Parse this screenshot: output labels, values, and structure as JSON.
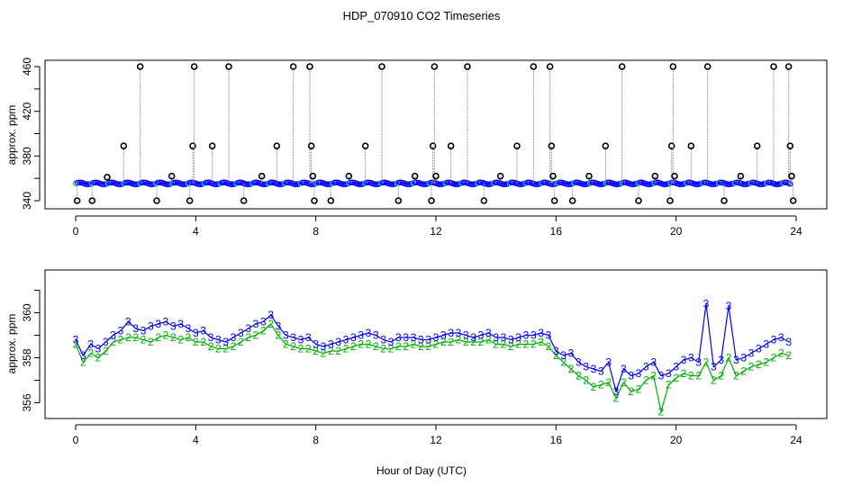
{
  "title": "HDP_070910  CO2 Timeseries",
  "xlabel": "Hour of Day (UTC)",
  "chart_data": [
    {
      "type": "scatter",
      "panel": "top",
      "ylabel": "approx. ppm",
      "xlim": [
        0,
        24
      ],
      "ylim": [
        340,
        460
      ],
      "x_ticks": [
        0,
        4,
        8,
        12,
        16,
        20,
        24
      ],
      "y_ticks": [
        340,
        380,
        420,
        460
      ],
      "y_ticks_minor": [
        360,
        400,
        440
      ],
      "colors": {
        "primary": "#0000ff",
        "secondary": "#00c8c8",
        "spikes": "#000000",
        "spike_line": "#9a9a9a"
      },
      "baseline_range": [
        354,
        357
      ],
      "spikes": [
        {
          "x": 0.05,
          "y": 340
        },
        {
          "x": 0.55,
          "y": 340
        },
        {
          "x": 1.05,
          "y": 361
        },
        {
          "x": 1.6,
          "y": 389
        },
        {
          "x": 2.15,
          "y": 460
        },
        {
          "x": 2.7,
          "y": 340
        },
        {
          "x": 3.2,
          "y": 362
        },
        {
          "x": 3.8,
          "y": 340
        },
        {
          "x": 3.9,
          "y": 389
        },
        {
          "x": 3.95,
          "y": 460
        },
        {
          "x": 4.55,
          "y": 389
        },
        {
          "x": 5.1,
          "y": 460
        },
        {
          "x": 5.6,
          "y": 340
        },
        {
          "x": 6.2,
          "y": 362
        },
        {
          "x": 6.7,
          "y": 389
        },
        {
          "x": 7.25,
          "y": 460
        },
        {
          "x": 7.8,
          "y": 460
        },
        {
          "x": 7.85,
          "y": 389
        },
        {
          "x": 7.9,
          "y": 362
        },
        {
          "x": 7.95,
          "y": 340
        },
        {
          "x": 8.5,
          "y": 340
        },
        {
          "x": 9.1,
          "y": 362
        },
        {
          "x": 9.65,
          "y": 389
        },
        {
          "x": 10.2,
          "y": 460
        },
        {
          "x": 10.75,
          "y": 340
        },
        {
          "x": 11.3,
          "y": 362
        },
        {
          "x": 11.85,
          "y": 340
        },
        {
          "x": 11.9,
          "y": 389
        },
        {
          "x": 11.95,
          "y": 460
        },
        {
          "x": 12.0,
          "y": 362
        },
        {
          "x": 12.5,
          "y": 389
        },
        {
          "x": 13.05,
          "y": 460
        },
        {
          "x": 13.6,
          "y": 340
        },
        {
          "x": 14.15,
          "y": 362
        },
        {
          "x": 14.7,
          "y": 389
        },
        {
          "x": 15.25,
          "y": 460
        },
        {
          "x": 15.8,
          "y": 460
        },
        {
          "x": 15.85,
          "y": 389
        },
        {
          "x": 15.9,
          "y": 362
        },
        {
          "x": 15.95,
          "y": 340
        },
        {
          "x": 16.55,
          "y": 340
        },
        {
          "x": 17.1,
          "y": 362
        },
        {
          "x": 17.65,
          "y": 389
        },
        {
          "x": 18.2,
          "y": 460
        },
        {
          "x": 18.75,
          "y": 340
        },
        {
          "x": 19.3,
          "y": 362
        },
        {
          "x": 19.8,
          "y": 340
        },
        {
          "x": 19.85,
          "y": 389
        },
        {
          "x": 19.9,
          "y": 460
        },
        {
          "x": 19.95,
          "y": 362
        },
        {
          "x": 20.5,
          "y": 389
        },
        {
          "x": 21.05,
          "y": 460
        },
        {
          "x": 21.6,
          "y": 340
        },
        {
          "x": 22.15,
          "y": 362
        },
        {
          "x": 22.7,
          "y": 389
        },
        {
          "x": 23.25,
          "y": 460
        },
        {
          "x": 23.75,
          "y": 460
        },
        {
          "x": 23.8,
          "y": 389
        },
        {
          "x": 23.85,
          "y": 362
        },
        {
          "x": 23.9,
          "y": 340
        }
      ]
    },
    {
      "type": "line",
      "panel": "bottom",
      "ylabel": "approx. ppm",
      "xlim": [
        0,
        24
      ],
      "ylim": [
        355.5,
        361.5
      ],
      "x_ticks": [
        0,
        4,
        8,
        12,
        16,
        20,
        24
      ],
      "y_ticks": [
        356,
        358,
        360
      ],
      "y_ticks_minor": [
        357,
        359,
        361
      ],
      "marker_series_3": "3",
      "marker_series_2": "2",
      "colors": {
        "series_3": "#0000ff",
        "series_2": "#00b000"
      },
      "x": [
        0.0,
        0.25,
        0.5,
        0.75,
        1.0,
        1.25,
        1.5,
        1.75,
        2.0,
        2.25,
        2.5,
        2.75,
        3.0,
        3.25,
        3.5,
        3.75,
        4.0,
        4.25,
        4.5,
        4.75,
        5.0,
        5.25,
        5.5,
        5.75,
        6.0,
        6.25,
        6.5,
        6.75,
        7.0,
        7.25,
        7.5,
        7.75,
        8.0,
        8.25,
        8.5,
        8.75,
        9.0,
        9.25,
        9.5,
        9.75,
        10.0,
        10.25,
        10.5,
        10.75,
        11.0,
        11.25,
        11.5,
        11.75,
        12.0,
        12.25,
        12.5,
        12.75,
        13.0,
        13.25,
        13.5,
        13.75,
        14.0,
        14.25,
        14.5,
        14.75,
        15.0,
        15.25,
        15.5,
        15.75,
        16.0,
        16.25,
        16.5,
        16.75,
        17.0,
        17.25,
        17.5,
        17.75,
        18.0,
        18.25,
        18.5,
        18.75,
        19.0,
        19.25,
        19.5,
        19.75,
        20.0,
        20.25,
        20.5,
        20.75,
        21.0,
        21.25,
        21.5,
        21.75,
        22.0,
        22.25,
        22.5,
        22.75,
        23.0,
        23.25,
        23.5,
        23.75
      ],
      "series_3": [
        358.8,
        358.1,
        358.6,
        358.4,
        358.7,
        359.0,
        359.2,
        359.6,
        359.3,
        359.2,
        359.4,
        359.5,
        359.6,
        359.4,
        359.5,
        359.3,
        359.1,
        359.2,
        358.9,
        358.8,
        358.7,
        358.9,
        359.1,
        359.3,
        359.5,
        359.6,
        359.9,
        359.4,
        359.0,
        358.9,
        358.8,
        358.9,
        358.6,
        358.5,
        358.6,
        358.7,
        358.8,
        358.9,
        359.0,
        359.1,
        359.0,
        358.8,
        358.7,
        358.9,
        358.9,
        358.9,
        358.8,
        358.8,
        358.9,
        359.0,
        359.1,
        359.1,
        359.0,
        358.9,
        359.0,
        359.1,
        358.9,
        358.9,
        358.8,
        358.9,
        359.0,
        359.0,
        359.1,
        359.0,
        358.3,
        358.1,
        358.2,
        357.8,
        357.6,
        357.5,
        357.4,
        357.8,
        356.5,
        357.5,
        357.2,
        357.3,
        357.6,
        357.8,
        357.2,
        357.3,
        357.6,
        357.9,
        358.0,
        357.8,
        360.4,
        357.6,
        357.9,
        360.3,
        357.9,
        358.0,
        358.2,
        358.4,
        358.6,
        358.8,
        358.9,
        358.7
      ],
      "series_2": [
        358.6,
        357.8,
        358.2,
        358.0,
        358.3,
        358.7,
        358.8,
        358.9,
        358.9,
        358.8,
        358.7,
        358.9,
        359.0,
        358.9,
        358.8,
        358.9,
        358.7,
        358.7,
        358.5,
        358.4,
        358.4,
        358.5,
        358.7,
        358.9,
        359.0,
        359.2,
        359.5,
        359.0,
        358.6,
        358.5,
        358.4,
        358.4,
        358.3,
        358.2,
        358.3,
        358.3,
        358.4,
        358.5,
        358.6,
        358.6,
        358.5,
        358.4,
        358.4,
        358.5,
        358.5,
        358.6,
        358.5,
        358.5,
        358.6,
        358.7,
        358.7,
        358.8,
        358.7,
        358.7,
        358.7,
        358.8,
        358.6,
        358.6,
        358.5,
        358.6,
        358.6,
        358.6,
        358.7,
        358.5,
        358.1,
        357.8,
        357.5,
        357.2,
        357.0,
        356.7,
        356.8,
        356.9,
        356.2,
        356.9,
        356.5,
        356.6,
        357.0,
        357.2,
        355.6,
        356.8,
        357.1,
        357.3,
        357.2,
        357.2,
        357.8,
        357.0,
        357.2,
        358.0,
        357.2,
        357.4,
        357.6,
        357.7,
        357.8,
        358.0,
        358.2,
        358.1
      ]
    }
  ]
}
